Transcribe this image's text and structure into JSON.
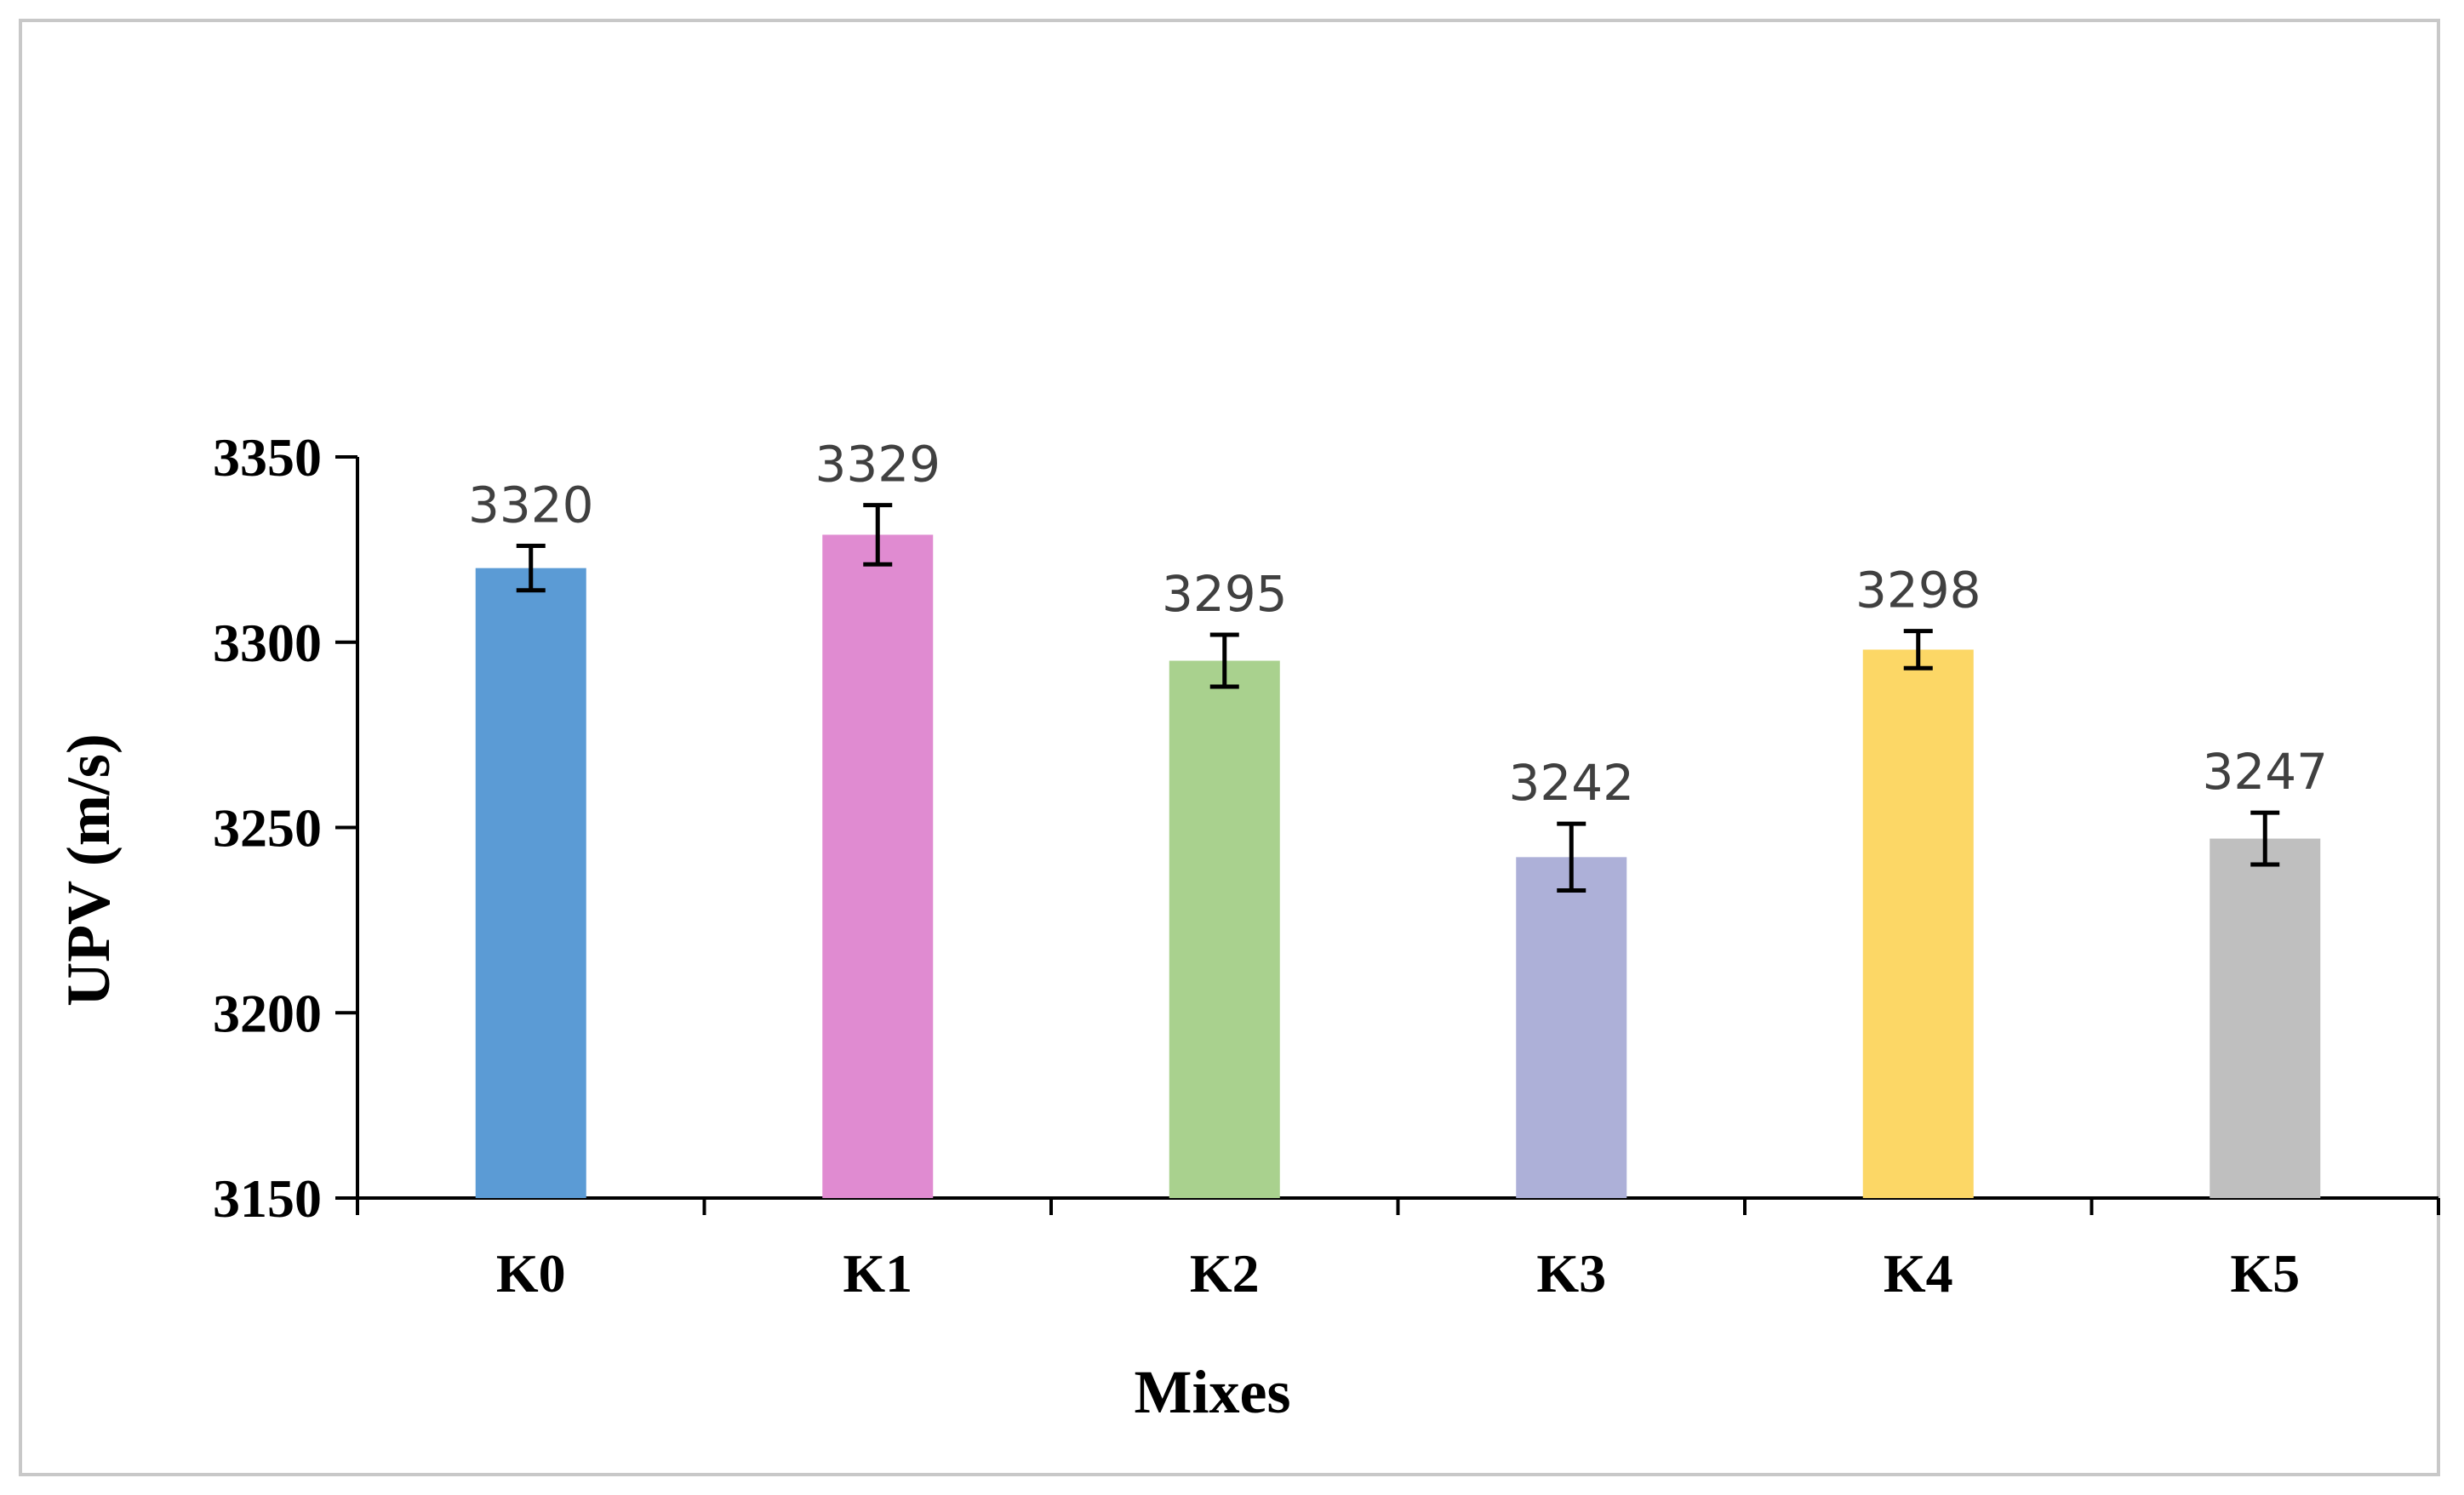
{
  "chart_data": {
    "type": "bar",
    "title": "",
    "xlabel": "Mixes",
    "ylabel": "UPV (m/s)",
    "ylim": [
      3150,
      3350
    ],
    "yticks": [
      3150,
      3200,
      3250,
      3300,
      3350
    ],
    "categories": [
      "K0",
      "K1",
      "K2",
      "K3",
      "K4",
      "K5"
    ],
    "values": [
      3320,
      3329,
      3295,
      3242,
      3298,
      3247
    ],
    "data_labels": [
      "3320",
      "3329",
      "3295",
      "3242",
      "3298",
      "3247"
    ],
    "error": [
      6,
      8,
      7,
      9,
      5,
      7
    ],
    "colors": [
      "#5b9bd5",
      "#e08bd1",
      "#a9d18e",
      "#adb0d8",
      "#fcd766",
      "#bfbfbf"
    ],
    "grid": false,
    "legend": "none"
  }
}
